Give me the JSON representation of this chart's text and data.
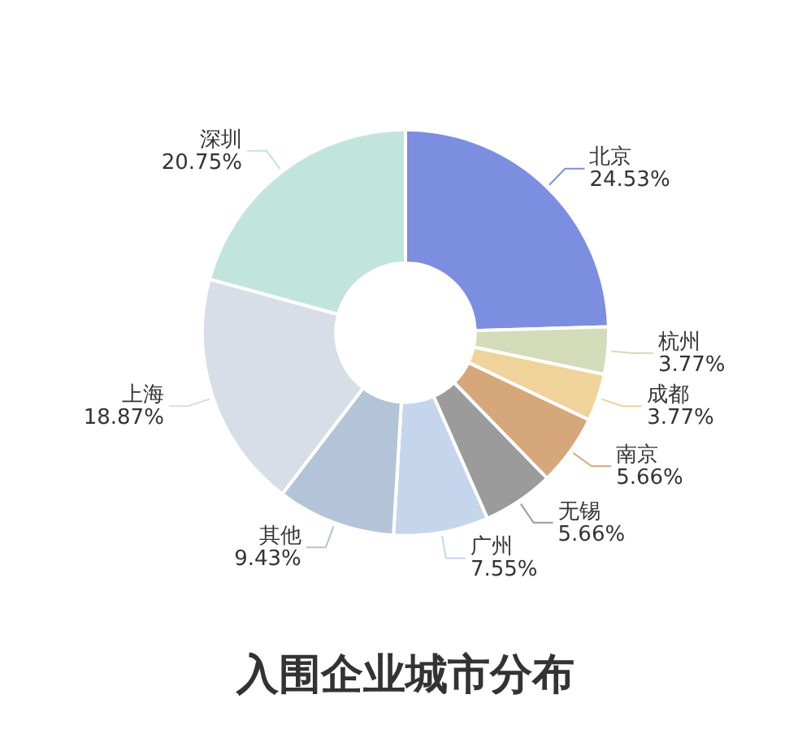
{
  "chart_data": {
    "type": "donut",
    "title": "入围企业城市分布",
    "categories": [
      "北京",
      "杭州",
      "成都",
      "南京",
      "无锡",
      "广州",
      "其他",
      "上海",
      "深圳"
    ],
    "values": [
      24.53,
      3.77,
      3.77,
      5.66,
      5.66,
      7.55,
      9.43,
      18.87,
      20.75
    ],
    "colors": [
      "#7b8ee0",
      "#d3dbb8",
      "#f0d39a",
      "#d6a77a",
      "#9b9b9b",
      "#c5d5ec",
      "#b3c4d9",
      "#d8dee8",
      "#c1e5dd"
    ],
    "legend": false,
    "value_labels": [
      "24.53%",
      "3.77%",
      "3.77%",
      "5.66%",
      "5.66%",
      "7.55%",
      "9.43%",
      "18.87%",
      "20.75%"
    ]
  }
}
